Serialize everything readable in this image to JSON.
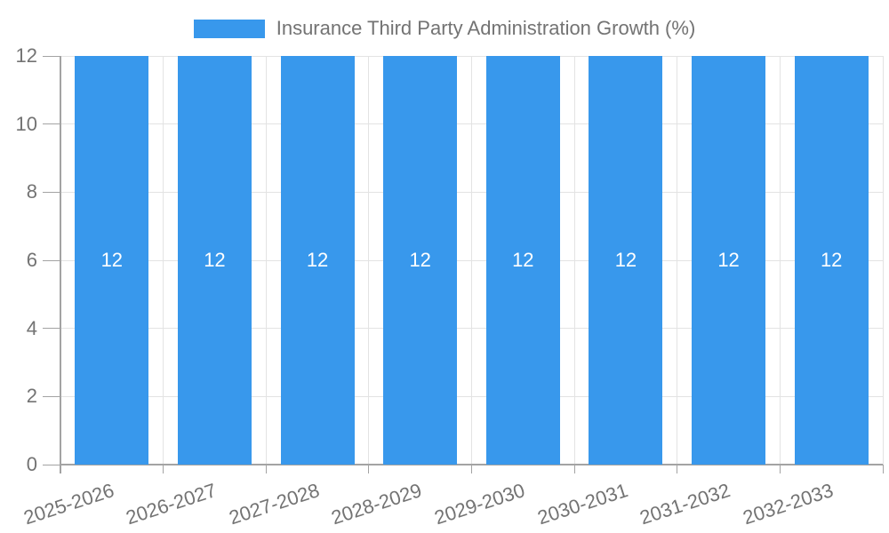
{
  "legend": {
    "label": "Insurance Third Party Administration Growth (%)"
  },
  "chart_data": {
    "type": "bar",
    "title": "Insurance Third Party Administration Growth (%)",
    "categories": [
      "2025-2026",
      "2026-2027",
      "2027-2028",
      "2028-2029",
      "2029-2030",
      "2030-2031",
      "2031-2032",
      "2032-2033"
    ],
    "values": [
      12,
      12,
      12,
      12,
      12,
      12,
      12,
      12
    ],
    "value_labels": [
      "12",
      "12",
      "12",
      "12",
      "12",
      "12",
      "12",
      "12"
    ],
    "yticks": [
      0,
      2,
      4,
      6,
      8,
      10,
      12
    ],
    "ylim": [
      0,
      12
    ],
    "xlabel": "",
    "ylabel": "",
    "grid": true,
    "legend_position": "top",
    "colors": {
      "bar": "#3898EC",
      "grid": "#e3e3e3",
      "axis": "#a3a3a3",
      "tick_text": "#737373",
      "value_label_text": "#ffffff"
    }
  }
}
